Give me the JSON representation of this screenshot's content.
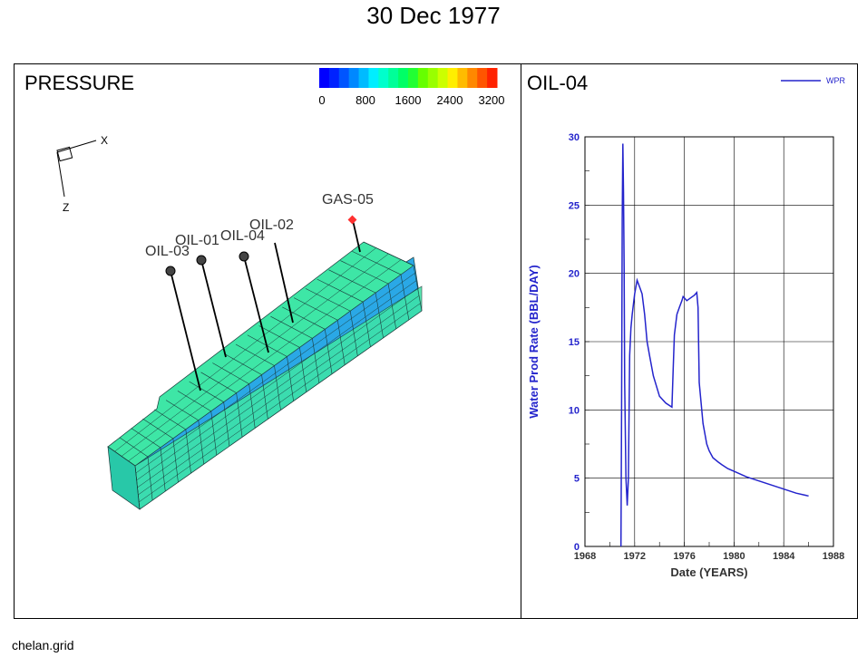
{
  "title": "30 Dec 1977",
  "footer": "chelan.grid",
  "left_panel": {
    "title": "PRESSURE",
    "colorbar": {
      "colors": [
        "#0000ff",
        "#0022ff",
        "#0055ff",
        "#0088ff",
        "#00bbff",
        "#00eeff",
        "#00ffcc",
        "#00ff99",
        "#00ff66",
        "#22ff33",
        "#66ff00",
        "#99ff00",
        "#ccff00",
        "#ffee00",
        "#ffbb00",
        "#ff8800",
        "#ff5500",
        "#ff2200"
      ],
      "ticks": [
        "0",
        "800",
        "1600",
        "2400",
        "3200"
      ]
    },
    "axes": {
      "x_label": "X",
      "z_label": "Z"
    },
    "wells": [
      {
        "name": "OIL-03"
      },
      {
        "name": "OIL-01"
      },
      {
        "name": "OIL-04"
      },
      {
        "name": "OIL-02"
      },
      {
        "name": "GAS-05"
      }
    ],
    "colors": {
      "top_face": "#3ee6a6",
      "mid_band": "#2aa8e6",
      "end_face": "#28c8a8",
      "grid_line": "#1a3a3a",
      "gas_marker": "#ff3030"
    }
  },
  "right_panel": {
    "title": "OIL-04",
    "legend": "WPR",
    "color": "#2424cc"
  },
  "chart_data": {
    "type": "line",
    "title": "",
    "xlabel": "Date (YEARS)",
    "ylabel": "Water Prod Rate (BBL/DAY)",
    "xlim": [
      1968,
      1988
    ],
    "ylim": [
      0,
      30
    ],
    "xticks": [
      "1968",
      "1972",
      "1976",
      "1980",
      "1984",
      "1988"
    ],
    "yticks": [
      "0",
      "5",
      "10",
      "15",
      "20",
      "25",
      "30"
    ],
    "grid": true,
    "legend_position": "top-right",
    "series": [
      {
        "name": "WPR",
        "x": [
          1970.9,
          1970.95,
          1971.0,
          1971.05,
          1971.1,
          1971.15,
          1971.2,
          1971.3,
          1971.4,
          1971.5,
          1971.6,
          1971.7,
          1971.8,
          1972.0,
          1972.2,
          1972.4,
          1972.6,
          1972.8,
          1973.0,
          1973.2,
          1973.5,
          1974.0,
          1974.5,
          1975.0,
          1975.1,
          1975.2,
          1975.4,
          1975.6,
          1975.8,
          1975.9,
          1976.0,
          1976.2,
          1976.5,
          1976.8,
          1977.0,
          1977.1,
          1977.2,
          1977.5,
          1977.8,
          1978.0,
          1978.3,
          1978.7,
          1979.0,
          1979.5,
          1980.0,
          1981.0,
          1982.0,
          1983.0,
          1984.0,
          1985.0,
          1986.0
        ],
        "y": [
          0,
          10,
          24,
          29.5,
          26,
          20.5,
          12,
          5,
          3,
          5,
          14,
          16,
          17,
          18.5,
          19.5,
          19,
          18.5,
          17,
          15,
          14,
          12.5,
          11,
          10.5,
          10.2,
          13,
          15.5,
          17,
          17.5,
          18,
          18.3,
          18.2,
          18.0,
          18.2,
          18.4,
          18.6,
          17.5,
          12,
          9,
          7.5,
          7,
          6.5,
          6.2,
          6.0,
          5.7,
          5.5,
          5.1,
          4.8,
          4.5,
          4.2,
          3.9,
          3.7
        ]
      }
    ]
  }
}
